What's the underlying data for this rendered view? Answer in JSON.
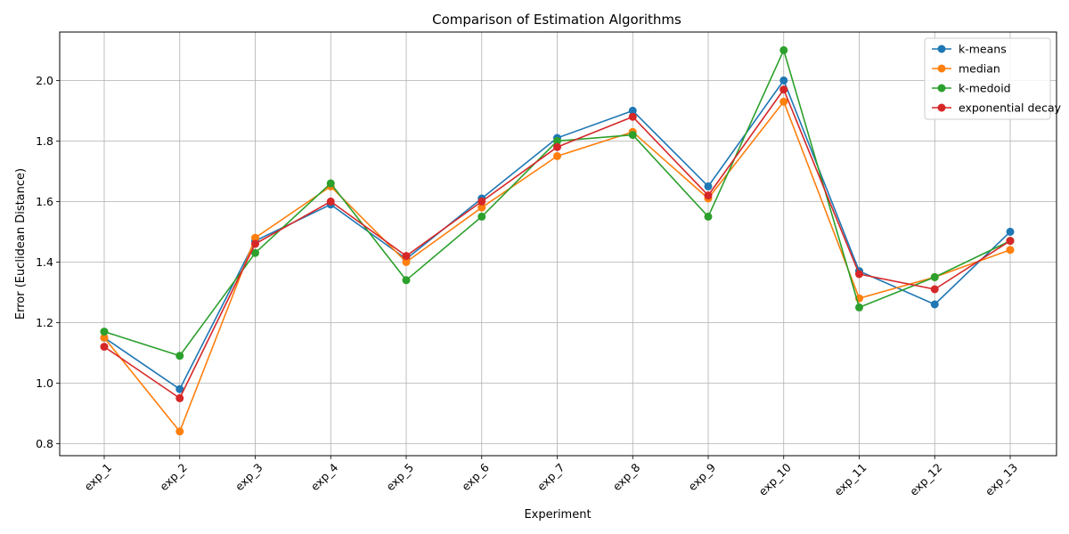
{
  "chart_data": {
    "type": "line",
    "title": "Comparison of Estimation Algorithms",
    "xlabel": "Experiment",
    "ylabel": "Error (Euclidean Distance)",
    "categories": [
      "exp_1",
      "exp_2",
      "exp_3",
      "exp_4",
      "exp_5",
      "exp_6",
      "exp_7",
      "exp_8",
      "exp_9",
      "exp_10",
      "exp_11",
      "exp_12",
      "exp_13"
    ],
    "ylim": [
      0.76,
      2.16
    ],
    "yticks": [
      0.8,
      1.0,
      1.2,
      1.4,
      1.6,
      1.8,
      2.0
    ],
    "grid": true,
    "legend_position": "top-right",
    "series": [
      {
        "name": "k-means",
        "color": "#1f77b4",
        "values": [
          1.15,
          0.98,
          1.47,
          1.59,
          1.41,
          1.61,
          1.81,
          1.9,
          1.65,
          2.0,
          1.37,
          1.26,
          1.5
        ]
      },
      {
        "name": "median",
        "color": "#ff7f0e",
        "values": [
          1.15,
          0.84,
          1.48,
          1.65,
          1.4,
          1.58,
          1.75,
          1.83,
          1.61,
          1.93,
          1.28,
          1.35,
          1.44
        ]
      },
      {
        "name": "k-medoid",
        "color": "#2ca02c",
        "values": [
          1.17,
          1.09,
          1.43,
          1.66,
          1.34,
          1.55,
          1.8,
          1.82,
          1.55,
          2.1,
          1.25,
          1.35,
          1.47
        ]
      },
      {
        "name": "exponential decay",
        "color": "#d62728",
        "values": [
          1.12,
          0.95,
          1.46,
          1.6,
          1.42,
          1.6,
          1.78,
          1.88,
          1.62,
          1.97,
          1.36,
          1.31,
          1.47
        ]
      }
    ]
  }
}
